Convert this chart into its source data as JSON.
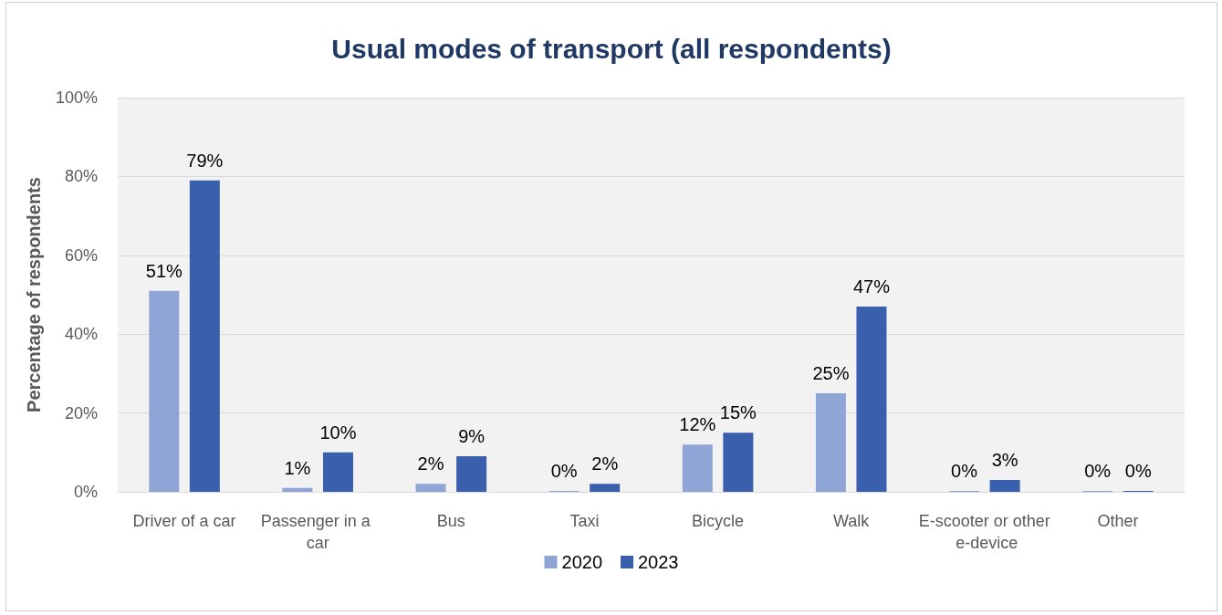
{
  "chart_data": {
    "type": "bar",
    "title": "Usual modes of transport (all respondents)",
    "ylabel": "Percentage of respondents",
    "categories": [
      "Driver of a car",
      "Passenger in a car",
      "Bus",
      "Taxi",
      "Bicycle",
      "Walk",
      "E-scooter or other e-device",
      "Other"
    ],
    "series": [
      {
        "name": "2020",
        "color": "#8fa5d6",
        "values": [
          51,
          1,
          2,
          0,
          12,
          25,
          0,
          0
        ],
        "value_labels": [
          "51%",
          "1%",
          "2%",
          "0%",
          "12%",
          "25%",
          "0%",
          "0%"
        ]
      },
      {
        "name": "2023",
        "color": "#3a5fad",
        "values": [
          79,
          10,
          9,
          2,
          15,
          47,
          3,
          0
        ],
        "value_labels": [
          "79%",
          "10%",
          "9%",
          "2%",
          "15%",
          "47%",
          "3%",
          "0%"
        ]
      }
    ],
    "ylim": [
      0,
      100
    ],
    "yticks": [
      {
        "value": 0,
        "label": "0%"
      },
      {
        "value": 20,
        "label": "20%"
      },
      {
        "value": 40,
        "label": "40%"
      },
      {
        "value": 60,
        "label": "60%"
      },
      {
        "value": 80,
        "label": "80%"
      },
      {
        "value": 100,
        "label": "100%"
      }
    ],
    "grid": "y",
    "legend": "bottom"
  }
}
